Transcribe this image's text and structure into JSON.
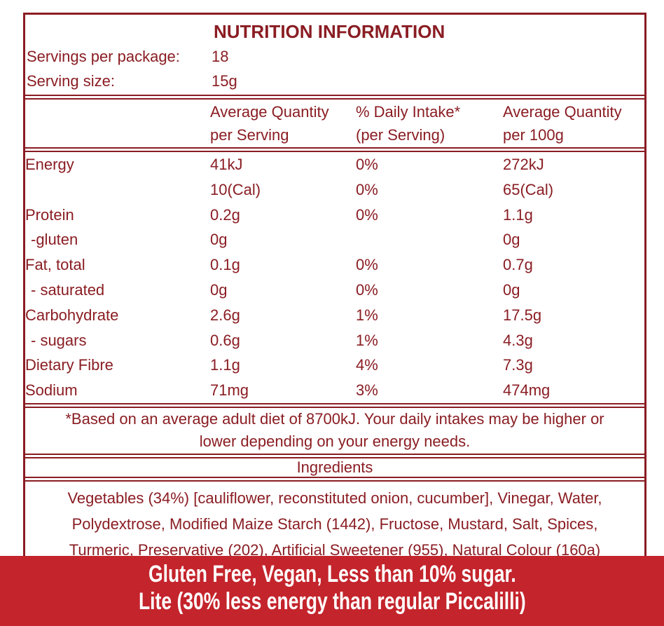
{
  "colors": {
    "label_dark_red": "#8a1d23",
    "banner_red": "#c4242c",
    "banner_text": "#ffffff"
  },
  "panel": {
    "title": "NUTRITION INFORMATION",
    "servings": {
      "label": "Servings per package:",
      "value": "18"
    },
    "serving_size": {
      "label": "Serving size:",
      "value": "15g"
    },
    "columns": {
      "per_serving": {
        "line1": "Average Quantity",
        "line2": "per Serving"
      },
      "daily_intake": {
        "line1": "% Daily Intake*",
        "line2": "(per Serving)"
      },
      "per_100g": {
        "line1": "Average Quantity",
        "line2": "per 100g"
      }
    },
    "rows": [
      {
        "nutrient": "Energy",
        "per_serving": "41kJ",
        "daily_intake": "0%",
        "per_100g": "272kJ"
      },
      {
        "nutrient": "",
        "per_serving": "10(Cal)",
        "daily_intake": "0%",
        "per_100g": "65(Cal)"
      },
      {
        "nutrient": "Protein",
        "per_serving": "0.2g",
        "daily_intake": "0%",
        "per_100g": "1.1g"
      },
      {
        "nutrient": "-gluten",
        "per_serving": "0g",
        "daily_intake": "",
        "per_100g": "0g"
      },
      {
        "nutrient": "Fat, total",
        "per_serving": "0.1g",
        "daily_intake": "0%",
        "per_100g": "0.7g"
      },
      {
        "nutrient": "- saturated",
        "per_serving": "0g",
        "daily_intake": "0%",
        "per_100g": "0g"
      },
      {
        "nutrient": "Carbohydrate",
        "per_serving": "2.6g",
        "daily_intake": "1%",
        "per_100g": "17.5g"
      },
      {
        "nutrient": "- sugars",
        "per_serving": "0.6g",
        "daily_intake": "1%",
        "per_100g": "4.3g"
      },
      {
        "nutrient": "Dietary Fibre",
        "per_serving": "1.1g",
        "daily_intake": "4%",
        "per_100g": "7.3g"
      },
      {
        "nutrient": "Sodium",
        "per_serving": "71mg",
        "daily_intake": "3%",
        "per_100g": "474mg"
      }
    ],
    "footnote_lines": [
      "*Based on an average adult diet of 8700kJ. Your daily intakes may be higher or",
      "lower depending on your energy needs."
    ],
    "ingredients_heading": "Ingredients",
    "ingredients_lines": [
      "Vegetables (34%) [cauliflower, reconstituted onion, cucumber], Vinegar, Water,",
      "Polydextrose, Modified Maize Starch (1442), Fructose, Mustard, Salt, Spices,",
      "Turmeric, Preservative (202), Artificial Sweetener (955), Natural Colour (160a)"
    ]
  },
  "banner": {
    "lines": [
      "Gluten Free, Vegan, Less than 10% sugar.",
      "Lite (30% less energy than regular Piccalilli)"
    ]
  }
}
